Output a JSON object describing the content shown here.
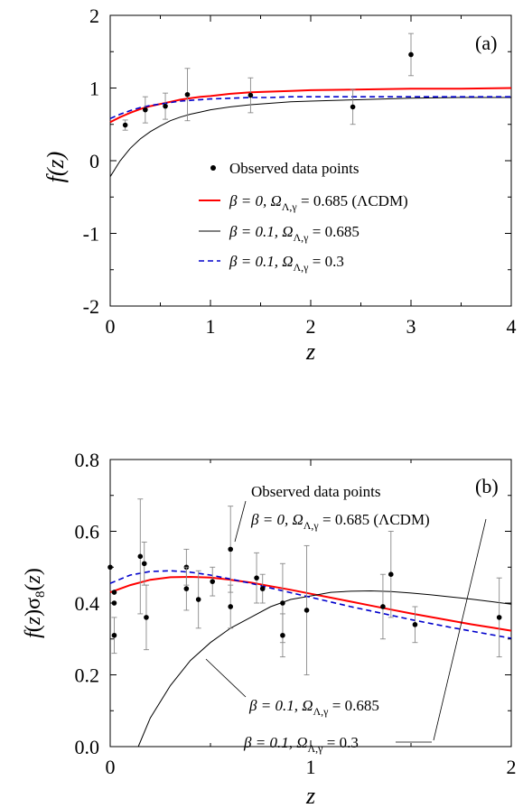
{
  "chart_data": [
    {
      "type": "line",
      "panel_label": "(a)",
      "xlabel": "z",
      "ylabel": "f(z)",
      "xlim": [
        0,
        4
      ],
      "ylim": [
        -2,
        2
      ],
      "xticks": [
        "0",
        "1",
        "2",
        "3",
        "4"
      ],
      "yticks": [
        "-2",
        "-1",
        "0",
        "1",
        "2"
      ],
      "observed": {
        "legend": "Observed data points",
        "points": [
          {
            "x": 0.15,
            "y": 0.49,
            "err": 0.07
          },
          {
            "x": 0.35,
            "y": 0.7,
            "err": 0.18
          },
          {
            "x": 0.55,
            "y": 0.75,
            "err": 0.18
          },
          {
            "x": 0.77,
            "y": 0.91,
            "err": 0.36
          },
          {
            "x": 1.4,
            "y": 0.9,
            "err": 0.24
          },
          {
            "x": 2.42,
            "y": 0.74,
            "err": 0.24
          },
          {
            "x": 3.0,
            "y": 1.46,
            "err": 0.29
          }
        ]
      },
      "series": [
        {
          "legend": "β = 0,   Ω",
          "legend_sub": "Λ,γ",
          "legend_rest": " = 0.685 (ΛCDM)",
          "color": "#ff0000",
          "dash": "",
          "x": [
            0,
            0.1,
            0.2,
            0.3,
            0.4,
            0.5,
            0.6,
            0.7,
            0.8,
            0.9,
            1.0,
            1.2,
            1.4,
            1.6,
            1.8,
            2.0,
            2.5,
            3.0,
            3.5,
            4.0
          ],
          "y": [
            0.53,
            0.6,
            0.66,
            0.71,
            0.75,
            0.78,
            0.81,
            0.84,
            0.86,
            0.88,
            0.89,
            0.92,
            0.94,
            0.95,
            0.96,
            0.97,
            0.98,
            0.99,
            0.99,
            1.0
          ]
        },
        {
          "legend": "β = 0.1, Ω",
          "legend_sub": "Λ,γ",
          "legend_rest": " = 0.685",
          "color": "#000000",
          "dash": "",
          "x": [
            0,
            0.1,
            0.2,
            0.3,
            0.4,
            0.5,
            0.6,
            0.7,
            0.8,
            0.9,
            1.0,
            1.2,
            1.4,
            1.6,
            1.8,
            2.0,
            2.5,
            3.0,
            3.5,
            4.0
          ],
          "y": [
            -0.22,
            0.0,
            0.17,
            0.3,
            0.4,
            0.48,
            0.55,
            0.6,
            0.64,
            0.67,
            0.7,
            0.74,
            0.77,
            0.79,
            0.81,
            0.82,
            0.84,
            0.86,
            0.87,
            0.87
          ]
        },
        {
          "legend": "β = 0.1, Ω",
          "legend_sub": "Λ,γ",
          "legend_rest": " = 0.3",
          "color": "#0000cc",
          "dash": "6,4",
          "x": [
            0,
            0.1,
            0.2,
            0.3,
            0.4,
            0.5,
            0.6,
            0.7,
            0.8,
            0.9,
            1.0,
            1.2,
            1.4,
            1.6,
            1.8,
            2.0,
            2.5,
            3.0,
            3.5,
            4.0
          ],
          "y": [
            0.58,
            0.64,
            0.69,
            0.73,
            0.76,
            0.78,
            0.8,
            0.82,
            0.83,
            0.84,
            0.85,
            0.86,
            0.87,
            0.87,
            0.88,
            0.88,
            0.88,
            0.88,
            0.88,
            0.88
          ]
        }
      ]
    },
    {
      "type": "line",
      "panel_label": "(b)",
      "xlabel": "z",
      "ylabel": "f(z)σ8(z)",
      "xlim": [
        0,
        2
      ],
      "ylim": [
        0,
        0.8
      ],
      "xticks": [
        "0",
        "1",
        "2"
      ],
      "yticks": [
        "0.0",
        "0.2",
        "0.4",
        "0.6",
        "0.8"
      ],
      "observed": {
        "legend": "Observed data points",
        "points": [
          {
            "x": 0.0,
            "y": 0.5,
            "err": 0.0
          },
          {
            "x": 0.02,
            "y": 0.43,
            "err": 0.0
          },
          {
            "x": 0.02,
            "y": 0.4,
            "err": 0.0
          },
          {
            "x": 0.02,
            "y": 0.31,
            "err": 0.05
          },
          {
            "x": 0.15,
            "y": 0.53,
            "err": 0.16
          },
          {
            "x": 0.17,
            "y": 0.51,
            "err": 0.06
          },
          {
            "x": 0.18,
            "y": 0.36,
            "err": 0.09
          },
          {
            "x": 0.38,
            "y": 0.5,
            "err": 0.05
          },
          {
            "x": 0.38,
            "y": 0.44,
            "err": 0.06
          },
          {
            "x": 0.44,
            "y": 0.41,
            "err": 0.08
          },
          {
            "x": 0.51,
            "y": 0.46,
            "err": 0.04
          },
          {
            "x": 0.6,
            "y": 0.55,
            "err": 0.12
          },
          {
            "x": 0.6,
            "y": 0.39,
            "err": 0.06
          },
          {
            "x": 0.73,
            "y": 0.47,
            "err": 0.07
          },
          {
            "x": 0.76,
            "y": 0.44,
            "err": 0.04
          },
          {
            "x": 0.86,
            "y": 0.4,
            "err": 0.11
          },
          {
            "x": 0.86,
            "y": 0.31,
            "err": 0.06
          },
          {
            "x": 0.98,
            "y": 0.38,
            "err": 0.18
          },
          {
            "x": 1.4,
            "y": 0.48,
            "err": 0.12
          },
          {
            "x": 1.52,
            "y": 0.34,
            "err": 0.05
          },
          {
            "x": 1.94,
            "y": 0.36,
            "err": 0.11
          },
          {
            "x": 1.36,
            "y": 0.39,
            "err": 0.09
          }
        ]
      },
      "series": [
        {
          "color": "#ff0000",
          "dash": "",
          "x": [
            0,
            0.1,
            0.2,
            0.3,
            0.4,
            0.5,
            0.6,
            0.7,
            0.8,
            0.9,
            1.0,
            1.1,
            1.2,
            1.3,
            1.4,
            1.5,
            1.6,
            1.7,
            1.8,
            1.9,
            2.0
          ],
          "y": [
            0.43,
            0.45,
            0.465,
            0.472,
            0.473,
            0.471,
            0.465,
            0.457,
            0.447,
            0.437,
            0.426,
            0.415,
            0.404,
            0.393,
            0.382,
            0.371,
            0.361,
            0.351,
            0.341,
            0.332,
            0.323
          ]
        },
        {
          "color": "#000000",
          "dash": "",
          "x": [
            0.14,
            0.2,
            0.3,
            0.4,
            0.5,
            0.6,
            0.7,
            0.8,
            0.9,
            1.0,
            1.1,
            1.2,
            1.3,
            1.4,
            1.5,
            1.6,
            1.7,
            1.8,
            1.9,
            2.0
          ],
          "y": [
            0.0,
            0.08,
            0.17,
            0.24,
            0.29,
            0.33,
            0.36,
            0.39,
            0.41,
            0.42,
            0.43,
            0.433,
            0.434,
            0.432,
            0.428,
            0.423,
            0.417,
            0.411,
            0.404,
            0.397
          ]
        },
        {
          "color": "#0000cc",
          "dash": "6,4",
          "x": [
            0,
            0.1,
            0.2,
            0.3,
            0.4,
            0.5,
            0.6,
            0.7,
            0.8,
            0.9,
            1.0,
            1.1,
            1.2,
            1.3,
            1.4,
            1.5,
            1.6,
            1.7,
            1.8,
            1.9,
            2.0
          ],
          "y": [
            0.455,
            0.478,
            0.488,
            0.49,
            0.486,
            0.478,
            0.467,
            0.455,
            0.442,
            0.429,
            0.416,
            0.403,
            0.39,
            0.378,
            0.366,
            0.354,
            0.343,
            0.332,
            0.322,
            0.312,
            0.302
          ]
        }
      ],
      "annotations": [
        {
          "text": "Observed data points"
        },
        {
          "text": "β = 0,  Ω",
          "sub": "Λ,γ",
          "rest": " = 0.685 (ΛCDM)"
        },
        {
          "text": "β = 0.1, Ω",
          "sub": "Λ,γ",
          "rest": " = 0.685"
        },
        {
          "text": "β = 0.1, Ω",
          "sub": "Λ,γ",
          "rest": " = 0.3"
        }
      ]
    }
  ]
}
